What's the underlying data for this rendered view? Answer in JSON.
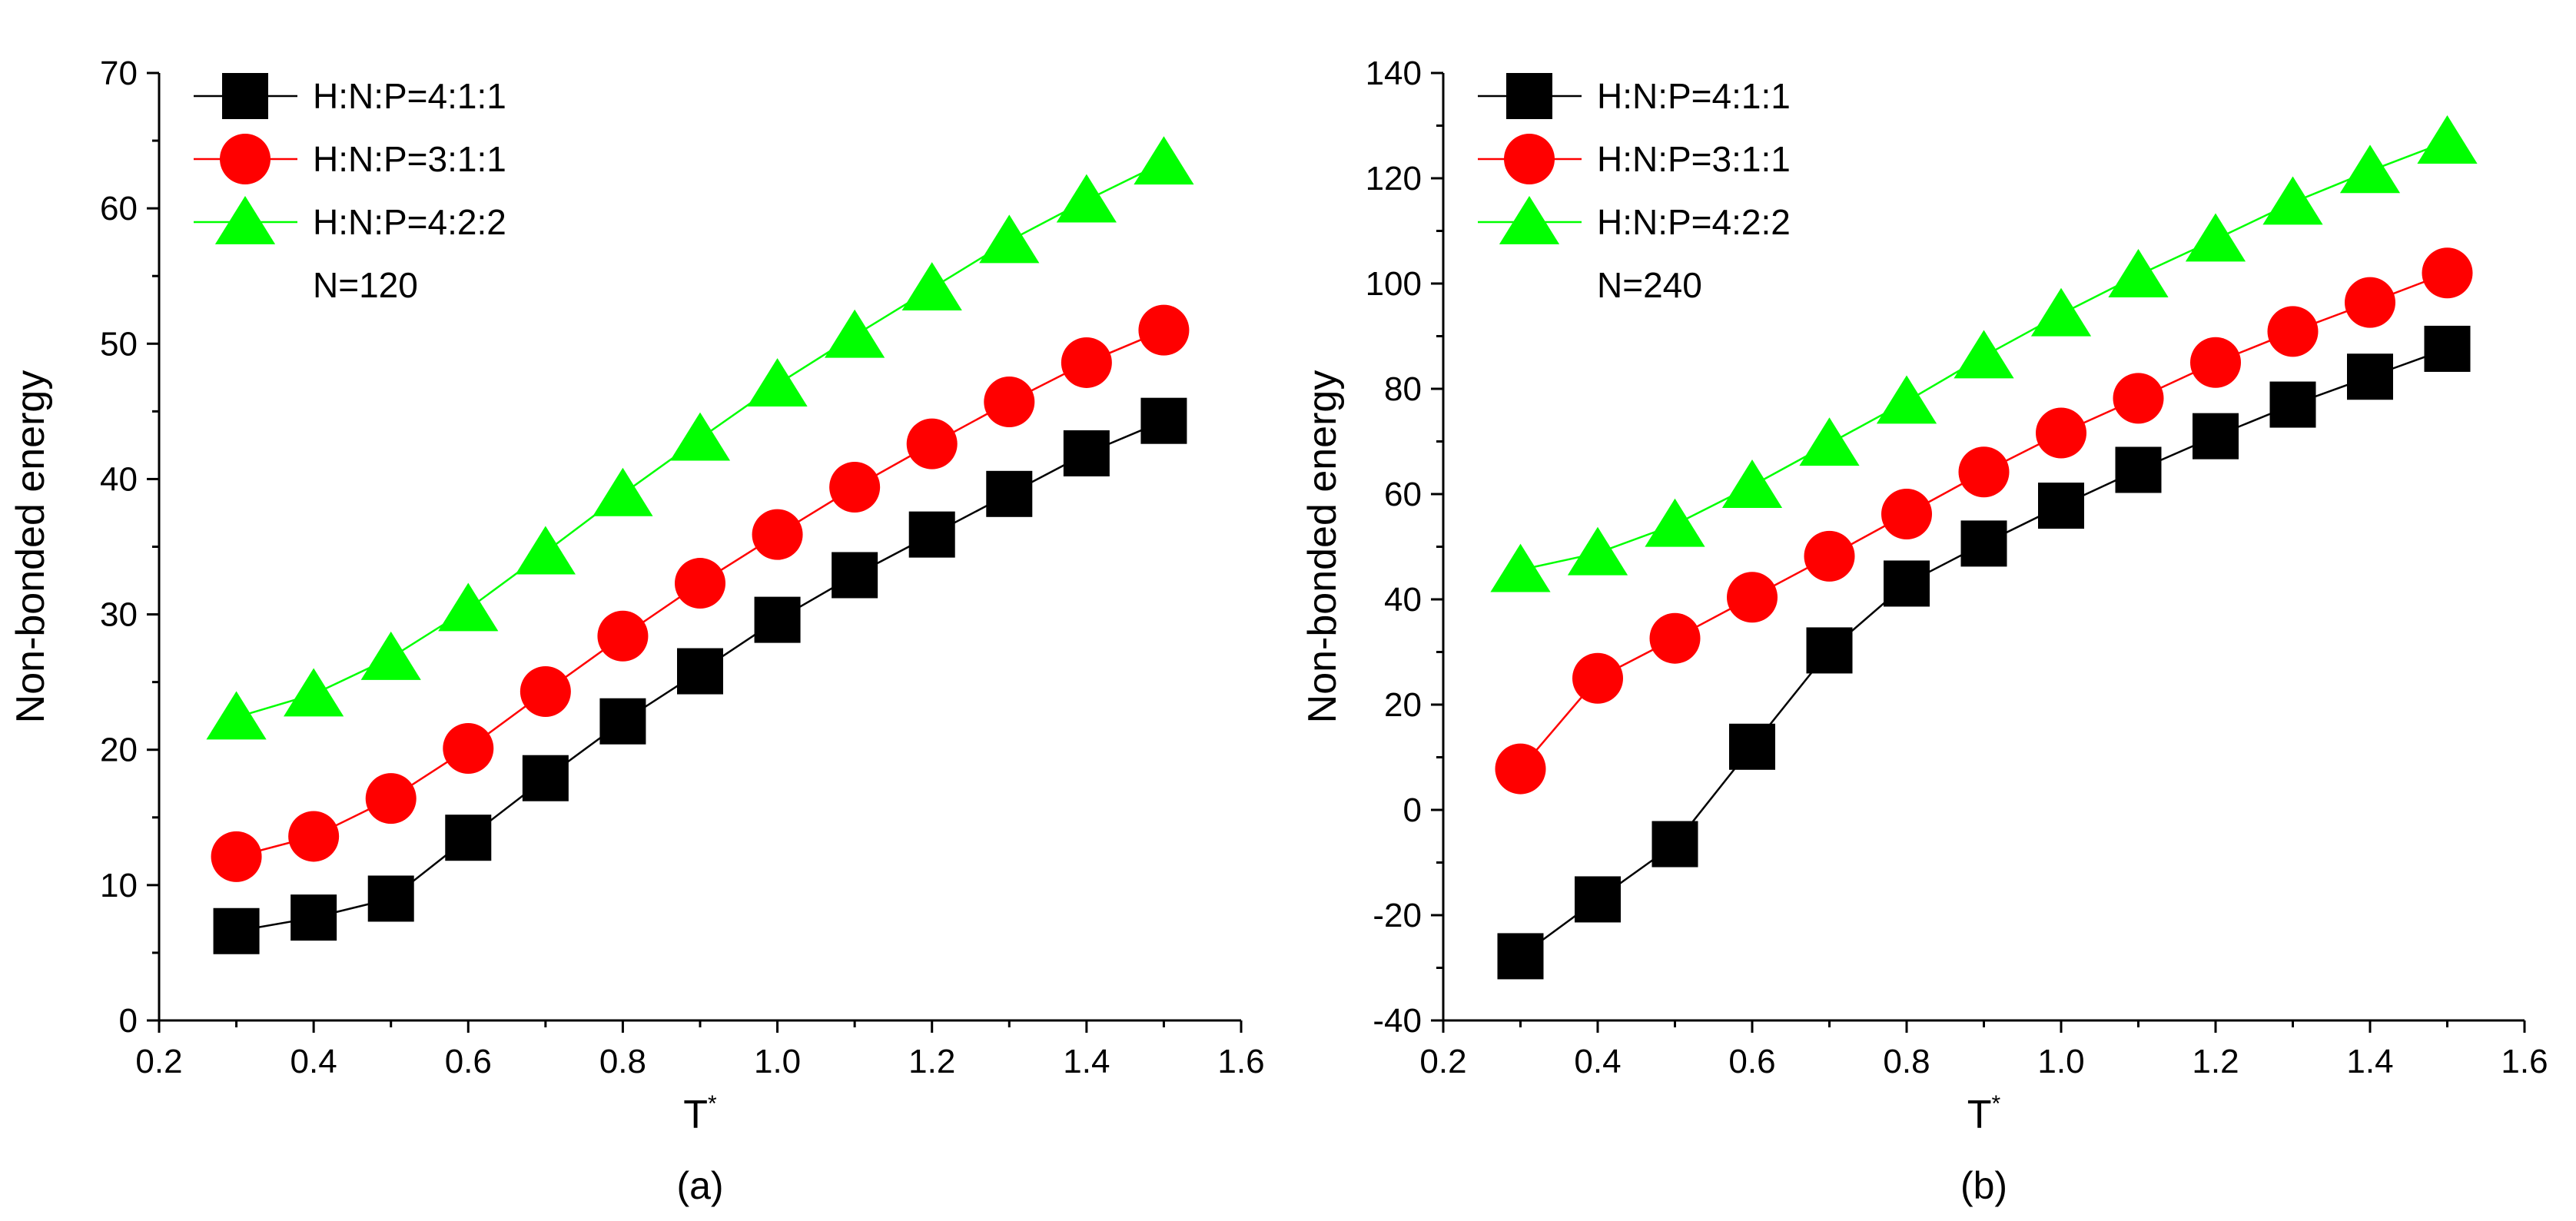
{
  "chart_data": [
    {
      "type": "line",
      "panel_label": "(a)",
      "xlabel": "T",
      "xlabel_superscript": "*",
      "ylabel": "Non-bonded energy",
      "annotation": "N=120",
      "xlim": [
        0.2,
        1.6
      ],
      "ylim": [
        0,
        70
      ],
      "xticks": [
        0.2,
        0.4,
        0.6,
        0.8,
        1.0,
        1.2,
        1.4,
        1.6
      ],
      "xtick_labels": [
        "0.2",
        "0.4",
        "0.6",
        "0.8",
        "1.0",
        "1.2",
        "1.4",
        "1.6"
      ],
      "yticks": [
        0,
        10,
        20,
        30,
        40,
        50,
        60,
        70
      ],
      "ytick_labels": [
        "0",
        "10",
        "20",
        "30",
        "40",
        "50",
        "60",
        "70"
      ],
      "grid": false,
      "legend_position": "top-left",
      "x": [
        0.3,
        0.4,
        0.5,
        0.6,
        0.7,
        0.8,
        0.9,
        1.0,
        1.1,
        1.2,
        1.3,
        1.4,
        1.5
      ],
      "series": [
        {
          "name": "H:N:P=4:1:1",
          "color": "#000000",
          "marker": "square",
          "values": [
            6.6,
            7.6,
            9.0,
            13.5,
            17.9,
            22.1,
            25.8,
            29.6,
            32.9,
            35.9,
            38.9,
            41.9,
            44.3
          ]
        },
        {
          "name": "H:N:P=3:1:1",
          "color": "#ff0000",
          "marker": "circle",
          "values": [
            12.1,
            13.6,
            16.4,
            20.1,
            24.3,
            28.4,
            32.3,
            35.9,
            39.4,
            42.6,
            45.7,
            48.6,
            51.0
          ]
        },
        {
          "name": "H:N:P=4:2:2",
          "color": "#00ff00",
          "marker": "triangle",
          "values": [
            22.4,
            24.1,
            26.8,
            30.4,
            34.6,
            38.9,
            43.0,
            47.0,
            50.6,
            54.1,
            57.6,
            60.6,
            63.4
          ]
        }
      ]
    },
    {
      "type": "line",
      "panel_label": "(b)",
      "xlabel": "T",
      "xlabel_superscript": "*",
      "ylabel": "Non-bonded energy",
      "annotation": "N=240",
      "xlim": [
        0.2,
        1.6
      ],
      "ylim": [
        -40,
        140
      ],
      "xticks": [
        0.2,
        0.4,
        0.6,
        0.8,
        1.0,
        1.2,
        1.4,
        1.6
      ],
      "xtick_labels": [
        "0.2",
        "0.4",
        "0.6",
        "0.8",
        "1.0",
        "1.2",
        "1.4",
        "1.6"
      ],
      "yticks": [
        -40,
        -20,
        0,
        20,
        40,
        60,
        80,
        100,
        120,
        140
      ],
      "ytick_labels": [
        "-40",
        "-20",
        "0",
        "20",
        "40",
        "60",
        "80",
        "100",
        "120",
        "140"
      ],
      "grid": false,
      "legend_position": "top-left",
      "x": [
        0.3,
        0.4,
        0.5,
        0.6,
        0.7,
        0.8,
        0.9,
        1.0,
        1.1,
        1.2,
        1.3,
        1.4,
        1.5
      ],
      "series": [
        {
          "name": "H:N:P=4:1:1",
          "color": "#000000",
          "marker": "square",
          "values": [
            -27.8,
            -17.0,
            -6.5,
            12.0,
            30.3,
            43.0,
            50.6,
            57.8,
            64.6,
            71.0,
            77.0,
            82.3,
            87.6
          ]
        },
        {
          "name": "H:N:P=3:1:1",
          "color": "#ff0000",
          "marker": "circle",
          "values": [
            7.8,
            25.0,
            32.6,
            40.4,
            48.2,
            56.2,
            64.2,
            71.6,
            78.2,
            85.0,
            90.9,
            96.4,
            102.0
          ]
        },
        {
          "name": "H:N:P=4:2:2",
          "color": "#00ff00",
          "marker": "triangle",
          "values": [
            45.6,
            48.8,
            54.2,
            61.6,
            69.6,
            77.6,
            86.2,
            94.2,
            101.6,
            108.4,
            115.4,
            121.4,
            127.0
          ]
        }
      ]
    }
  ]
}
